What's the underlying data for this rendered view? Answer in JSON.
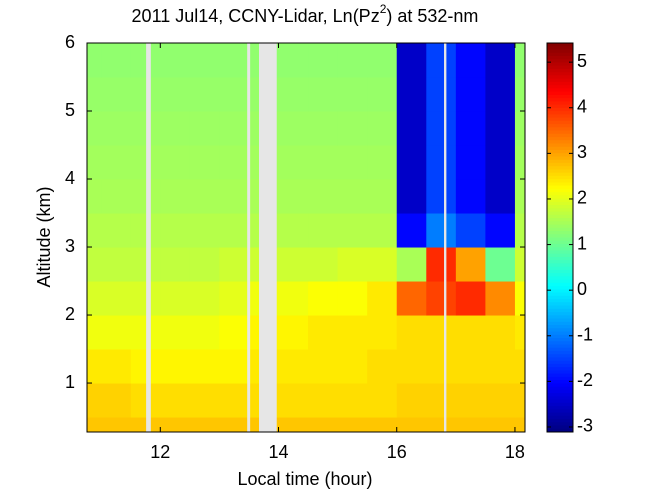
{
  "chart_data": {
    "type": "heatmap",
    "title": [
      "2011 Jul14, CCNY-Lidar, Ln(Pz",
      "2",
      ") at 532-nm"
    ],
    "xlabel": "Local time (hour)",
    "ylabel": "Altitude (km)",
    "xlim": [
      10.76,
      18.17
    ],
    "ylim": [
      0.28,
      6
    ],
    "xticks": [
      12,
      14,
      16,
      18
    ],
    "yticks": [
      1,
      2,
      3,
      4,
      5,
      6
    ],
    "clim": [
      -3.11,
      5.42
    ],
    "cticks": [
      -3,
      -2,
      -1,
      0,
      1,
      2,
      3,
      4,
      5
    ],
    "colormap": "jet",
    "xbins": [
      10.76,
      11,
      11.5,
      12,
      12.5,
      13,
      13.5,
      14,
      14.5,
      15,
      15.5,
      16,
      16.5,
      17,
      17.5,
      18,
      18.17
    ],
    "ybins": [
      0.28,
      0.5,
      1,
      1.5,
      2,
      2.5,
      3,
      3.5,
      4,
      4.5,
      5,
      5.5,
      6
    ],
    "values": [
      [
        2.7,
        2.7,
        2.7,
        2.7,
        2.7,
        2.7,
        2.7,
        2.7,
        2.7,
        2.7,
        2.7,
        2.7,
        2.7,
        2.7,
        2.7,
        2.7
      ],
      [
        2.6,
        2.6,
        2.5,
        2.5,
        2.5,
        2.5,
        2.5,
        2.5,
        2.5,
        2.5,
        2.5,
        2.6,
        2.6,
        2.6,
        2.6,
        2.6
      ],
      [
        2.4,
        2.4,
        2.3,
        2.3,
        2.3,
        2.3,
        2.4,
        2.4,
        2.4,
        2.4,
        2.5,
        2.5,
        2.5,
        2.5,
        2.5,
        2.5
      ],
      [
        2.1,
        2.1,
        2.1,
        2.1,
        2.1,
        2.2,
        2.3,
        2.3,
        2.4,
        2.4,
        2.4,
        2.5,
        2.5,
        2.5,
        2.5,
        2.4
      ],
      [
        1.9,
        1.9,
        1.9,
        1.9,
        1.9,
        2.0,
        2.1,
        2.1,
        2.2,
        2.2,
        2.4,
        3.5,
        3.8,
        4.0,
        3.2,
        2.2
      ],
      [
        1.7,
        1.7,
        1.7,
        1.7,
        1.7,
        1.8,
        1.8,
        1.8,
        1.8,
        1.9,
        1.9,
        1.5,
        4.0,
        3.0,
        1.0,
        1.8
      ],
      [
        1.6,
        1.6,
        1.6,
        1.6,
        1.6,
        1.6,
        1.6,
        1.6,
        1.6,
        1.6,
        1.6,
        -2.0,
        -1.0,
        -1.5,
        -2.0,
        1.6
      ],
      [
        1.5,
        1.5,
        1.5,
        1.5,
        1.5,
        1.5,
        1.5,
        1.5,
        1.5,
        1.5,
        1.5,
        -2.5,
        -1.5,
        -2.0,
        -2.5,
        1.5
      ],
      [
        1.45,
        1.45,
        1.45,
        1.45,
        1.45,
        1.45,
        1.45,
        1.45,
        1.45,
        1.45,
        1.45,
        -2.5,
        -1.5,
        -2.0,
        -2.5,
        1.45
      ],
      [
        1.4,
        1.4,
        1.4,
        1.4,
        1.4,
        1.4,
        1.4,
        1.4,
        1.4,
        1.4,
        1.4,
        -2.5,
        -1.5,
        -2.0,
        -2.5,
        1.4
      ],
      [
        1.35,
        1.35,
        1.35,
        1.35,
        1.35,
        1.35,
        1.35,
        1.35,
        1.35,
        1.35,
        1.35,
        -2.5,
        -1.5,
        -2.0,
        -2.5,
        1.35
      ],
      [
        1.3,
        1.3,
        1.3,
        1.3,
        1.3,
        1.3,
        1.3,
        1.3,
        1.3,
        1.3,
        1.3,
        -2.5,
        -1.5,
        -2.0,
        -2.5,
        1.3
      ]
    ],
    "gaps": [
      [
        11.76,
        11.84
      ],
      [
        13.47,
        13.52
      ],
      [
        13.67,
        13.97
      ],
      [
        16.8,
        16.84
      ]
    ]
  }
}
